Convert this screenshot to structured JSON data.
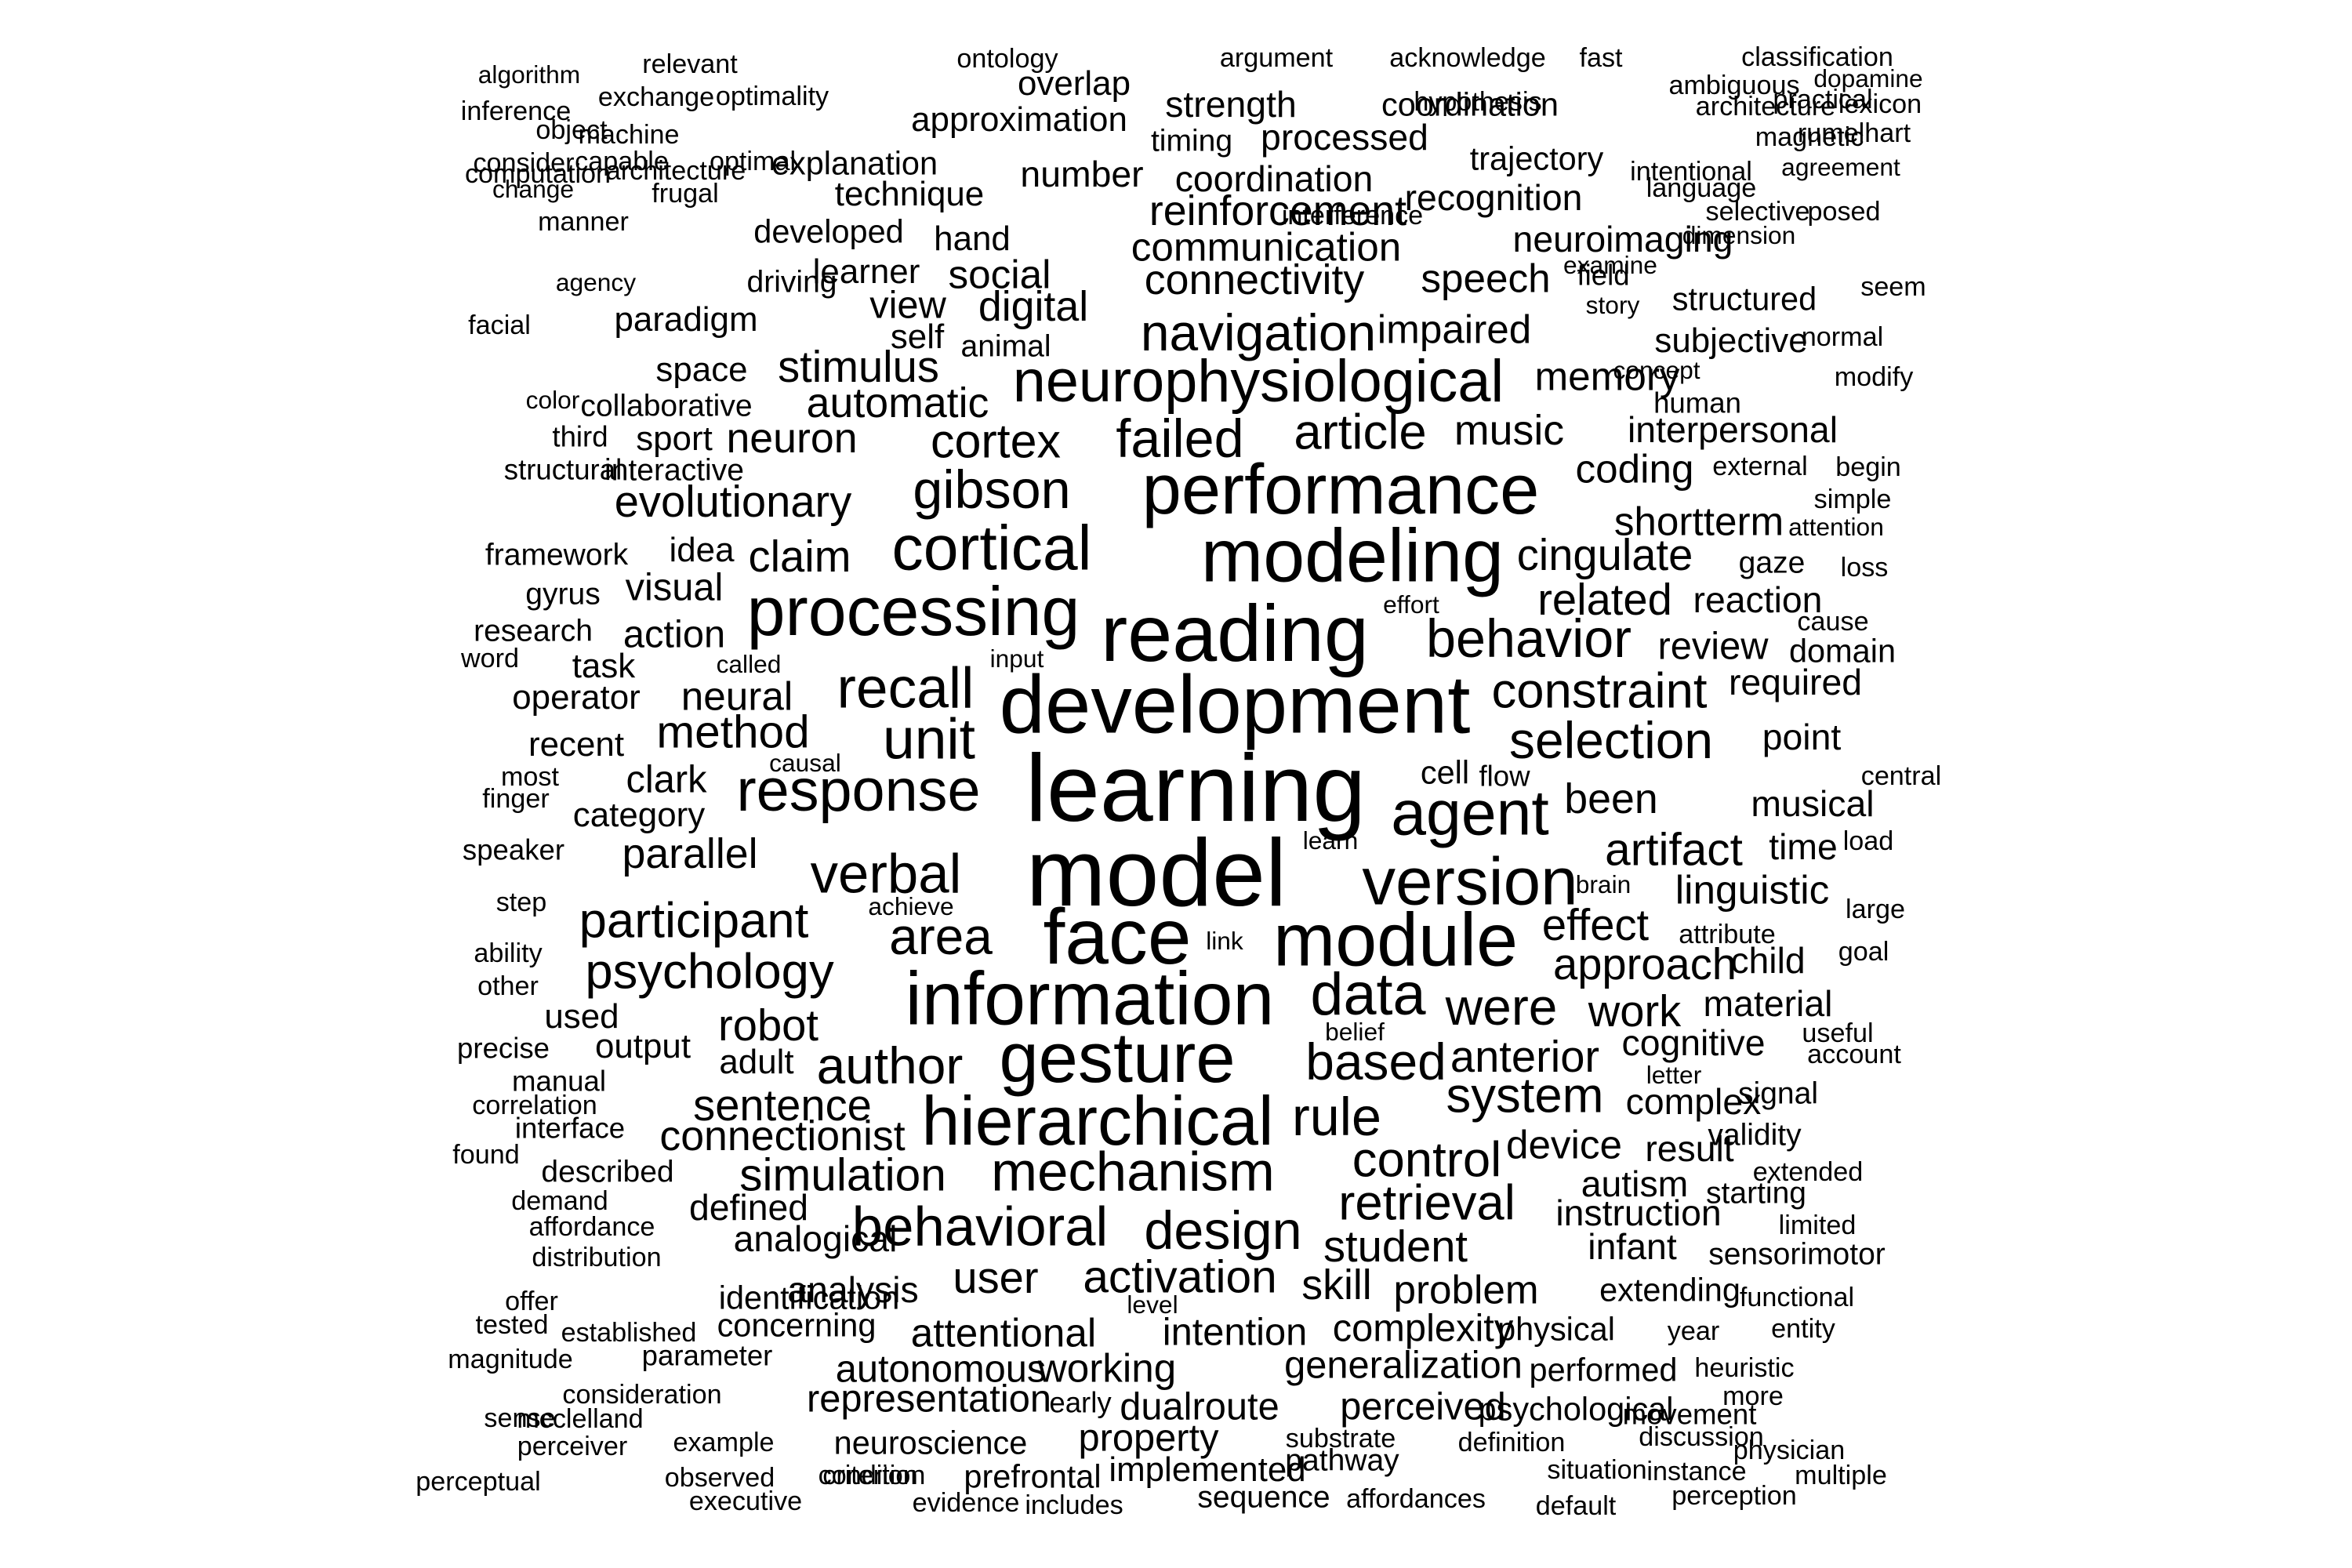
{
  "word_cloud": {
    "text_color": "#000000",
    "background": "#ffffff",
    "words": [
      {
        "text": "learning",
        "weight": 100
      },
      {
        "text": "model",
        "weight": 100
      },
      {
        "text": "development",
        "weight": 86
      },
      {
        "text": "reading",
        "weight": 84
      },
      {
        "text": "face",
        "weight": 82
      },
      {
        "text": "modeling",
        "weight": 78
      },
      {
        "text": "information",
        "weight": 78
      },
      {
        "text": "module",
        "weight": 78
      },
      {
        "text": "performance",
        "weight": 74
      },
      {
        "text": "gesture",
        "weight": 74
      },
      {
        "text": "hierarchical",
        "weight": 72
      },
      {
        "text": "processing",
        "weight": 72
      },
      {
        "text": "version",
        "weight": 70
      },
      {
        "text": "cortical",
        "weight": 66
      },
      {
        "text": "neurophysiological",
        "weight": 62
      },
      {
        "text": "agent",
        "weight": 66
      },
      {
        "text": "response",
        "weight": 62
      },
      {
        "text": "data",
        "weight": 62
      },
      {
        "text": "mechanism",
        "weight": 58
      },
      {
        "text": "behavioral",
        "weight": 58
      },
      {
        "text": "recall",
        "weight": 60
      },
      {
        "text": "unit",
        "weight": 60
      },
      {
        "text": "verbal",
        "weight": 58
      },
      {
        "text": "gibson",
        "weight": 56
      },
      {
        "text": "behavior",
        "weight": 56
      },
      {
        "text": "navigation",
        "weight": 54
      },
      {
        "text": "area",
        "weight": 54
      },
      {
        "text": "based",
        "weight": 54
      },
      {
        "text": "rule",
        "weight": 56
      },
      {
        "text": "author",
        "weight": 54
      },
      {
        "text": "failed",
        "weight": 56
      },
      {
        "text": "design",
        "weight": 56
      },
      {
        "text": "selection",
        "weight": 54
      },
      {
        "text": "participant",
        "weight": 52
      },
      {
        "text": "psychology",
        "weight": 52
      },
      {
        "text": "were",
        "weight": 54
      },
      {
        "text": "retrieval",
        "weight": 52
      },
      {
        "text": "constraint",
        "weight": 52
      },
      {
        "text": "system",
        "weight": 52
      },
      {
        "text": "control",
        "weight": 52
      },
      {
        "text": "article",
        "weight": 52
      },
      {
        "text": "cortex",
        "weight": 50
      },
      {
        "text": "simulation",
        "weight": 48
      },
      {
        "text": "activation",
        "weight": 48
      },
      {
        "text": "method",
        "weight": 48
      },
      {
        "text": "artifact",
        "weight": 48
      },
      {
        "text": "sentence",
        "weight": 46
      },
      {
        "text": "cingulate",
        "weight": 46
      },
      {
        "text": "related",
        "weight": 46
      },
      {
        "text": "anterior",
        "weight": 46
      },
      {
        "text": "evolutionary",
        "weight": 46
      },
      {
        "text": "approach",
        "weight": 46
      },
      {
        "text": "robot",
        "weight": 46
      },
      {
        "text": "stimulus",
        "weight": 46
      },
      {
        "text": "connectionist",
        "weight": 44
      },
      {
        "text": "user",
        "weight": 46
      },
      {
        "text": "student",
        "weight": 46
      },
      {
        "text": "claim",
        "weight": 46
      },
      {
        "text": "neuron",
        "weight": 44
      },
      {
        "text": "parallel",
        "weight": 44
      },
      {
        "text": "effect",
        "weight": 46
      },
      {
        "text": "work",
        "weight": 46
      },
      {
        "text": "music",
        "weight": 44
      },
      {
        "text": "automatic",
        "weight": 44
      },
      {
        "text": "connectivity",
        "weight": 44
      },
      {
        "text": "digital",
        "weight": 44
      },
      {
        "text": "linguistic",
        "weight": 42
      },
      {
        "text": "memory",
        "weight": 42
      },
      {
        "text": "impaired",
        "weight": 42
      },
      {
        "text": "communication",
        "weight": 42
      },
      {
        "text": "neural",
        "weight": 42
      },
      {
        "text": "coding",
        "weight": 42
      },
      {
        "text": "shortterm",
        "weight": 42
      },
      {
        "text": "device",
        "weight": 42
      },
      {
        "text": "speech",
        "weight": 42
      },
      {
        "text": "problem",
        "weight": 42
      },
      {
        "text": "skill",
        "weight": 44
      },
      {
        "text": "attentional",
        "weight": 42
      },
      {
        "text": "reinforcement",
        "weight": 44
      },
      {
        "text": "clark",
        "weight": 40
      },
      {
        "text": "social",
        "weight": 42
      },
      {
        "text": "view",
        "weight": 40
      },
      {
        "text": "visual",
        "weight": 40
      },
      {
        "text": "action",
        "weight": 40
      },
      {
        "text": "review",
        "weight": 40
      },
      {
        "text": "been",
        "weight": 44
      },
      {
        "text": "working",
        "weight": 42
      },
      {
        "text": "intention",
        "weight": 40
      },
      {
        "text": "complexity",
        "weight": 40
      },
      {
        "text": "generalization",
        "weight": 40
      },
      {
        "text": "representation",
        "weight": 40
      },
      {
        "text": "autonomous",
        "weight": 40
      },
      {
        "text": "perceived",
        "weight": 40
      },
      {
        "text": "dualroute",
        "weight": 40
      },
      {
        "text": "property",
        "weight": 40
      },
      {
        "text": "implemented",
        "weight": 36
      },
      {
        "text": "reaction",
        "weight": 38
      },
      {
        "text": "interpersonal",
        "weight": 38
      },
      {
        "text": "analysis",
        "weight": 38
      },
      {
        "text": "cognitive",
        "weight": 38
      },
      {
        "text": "material",
        "weight": 38
      },
      {
        "text": "analogical",
        "weight": 38
      },
      {
        "text": "defined",
        "weight": 38
      },
      {
        "text": "complex",
        "weight": 38
      },
      {
        "text": "result",
        "weight": 38
      },
      {
        "text": "autism",
        "weight": 38
      },
      {
        "text": "instruction",
        "weight": 38
      },
      {
        "text": "infant",
        "weight": 38
      },
      {
        "text": "required",
        "weight": 38
      },
      {
        "text": "musical",
        "weight": 38
      },
      {
        "text": "time",
        "weight": 38
      },
      {
        "text": "point",
        "weight": 38
      },
      {
        "text": "domain",
        "weight": 34
      },
      {
        "text": "child",
        "weight": 38
      },
      {
        "text": "recognition",
        "weight": 38
      },
      {
        "text": "processed",
        "weight": 38
      },
      {
        "text": "coordination",
        "weight": 38
      },
      {
        "text": "number",
        "weight": 38
      },
      {
        "text": "technique",
        "weight": 36
      },
      {
        "text": "strength",
        "weight": 38
      },
      {
        "text": "category",
        "weight": 36
      },
      {
        "text": "output",
        "weight": 36
      },
      {
        "text": "adult",
        "weight": 36
      },
      {
        "text": "used",
        "weight": 36
      },
      {
        "text": "operator",
        "weight": 36
      },
      {
        "text": "recent",
        "weight": 36
      },
      {
        "text": "task",
        "weight": 36
      },
      {
        "text": "neuroimaging",
        "weight": 38
      },
      {
        "text": "space",
        "weight": 36
      },
      {
        "text": "paradigm",
        "weight": 36
      },
      {
        "text": "learner",
        "weight": 36
      },
      {
        "text": "self",
        "weight": 36
      },
      {
        "text": "hand",
        "weight": 36
      },
      {
        "text": "idea",
        "weight": 36
      },
      {
        "text": "sport",
        "weight": 36
      },
      {
        "text": "subjective",
        "weight": 36
      },
      {
        "text": "structured",
        "weight": 34
      },
      {
        "text": "neuroscience",
        "weight": 34
      },
      {
        "text": "concerning",
        "weight": 34
      },
      {
        "text": "identification",
        "weight": 34
      },
      {
        "text": "prefrontal",
        "weight": 34
      },
      {
        "text": "psychological",
        "weight": 34
      },
      {
        "text": "extending",
        "weight": 34
      },
      {
        "text": "physical",
        "weight": 34
      },
      {
        "text": "performed",
        "weight": 34
      },
      {
        "text": "sensorimotor",
        "weight": 32
      },
      {
        "text": "starting",
        "weight": 32
      },
      {
        "text": "validity",
        "weight": 32
      },
      {
        "text": "signal",
        "weight": 32
      },
      {
        "text": "useful",
        "weight": 28
      },
      {
        "text": "sequence",
        "weight": 32
      },
      {
        "text": "pathway",
        "weight": 32
      },
      {
        "text": "approximation",
        "weight": 36
      },
      {
        "text": "explanation",
        "weight": 34
      },
      {
        "text": "developed",
        "weight": 34
      },
      {
        "text": "overlap",
        "weight": 36
      },
      {
        "text": "coordination",
        "weight": 34
      },
      {
        "text": "trajectory",
        "weight": 34
      },
      {
        "text": "timing",
        "weight": 32
      },
      {
        "text": "gaze",
        "weight": 32
      },
      {
        "text": "collaborative",
        "weight": 32
      },
      {
        "text": "interactive",
        "weight": 32
      },
      {
        "text": "framework",
        "weight": 32
      },
      {
        "text": "research",
        "weight": 32
      },
      {
        "text": "gyrus",
        "weight": 32
      },
      {
        "text": "speaker",
        "weight": 30
      },
      {
        "text": "described",
        "weight": 32
      },
      {
        "text": "interface",
        "weight": 30
      },
      {
        "text": "precise",
        "weight": 30
      },
      {
        "text": "manual",
        "weight": 30
      },
      {
        "text": "driving",
        "weight": 32
      },
      {
        "text": "animal",
        "weight": 32
      },
      {
        "text": "structural",
        "weight": 30
      },
      {
        "text": "third",
        "weight": 30
      },
      {
        "text": "early",
        "weight": 30
      },
      {
        "text": "parameter",
        "weight": 30
      },
      {
        "text": "field",
        "weight": 30
      },
      {
        "text": "movement",
        "weight": 30
      },
      {
        "text": "heuristic",
        "weight": 28
      },
      {
        "text": "functional",
        "weight": 28
      },
      {
        "text": "extended",
        "weight": 28
      },
      {
        "text": "human",
        "weight": 30
      },
      {
        "text": "external",
        "weight": 28
      },
      {
        "text": "condition",
        "weight": 28
      },
      {
        "text": "affordances",
        "weight": 28
      },
      {
        "text": "example",
        "weight": 28
      },
      {
        "text": "perceptual",
        "weight": 28
      },
      {
        "text": "instance",
        "weight": 28
      },
      {
        "text": "perception",
        "weight": 28
      },
      {
        "text": "physician",
        "weight": 28
      },
      {
        "text": "discussion",
        "weight": 28
      },
      {
        "text": "substrate",
        "weight": 28
      },
      {
        "text": "definition",
        "weight": 28
      },
      {
        "text": "correlation",
        "weight": 28
      },
      {
        "text": "established",
        "weight": 28
      },
      {
        "text": "tested",
        "weight": 28
      },
      {
        "text": "magnitude",
        "weight": 28
      },
      {
        "text": "consideration",
        "weight": 28
      },
      {
        "text": "mcclelland",
        "weight": 28
      },
      {
        "text": "perceiver",
        "weight": 28
      },
      {
        "text": "observed",
        "weight": 28
      },
      {
        "text": "executive",
        "weight": 28
      },
      {
        "text": "criterion",
        "weight": 28
      },
      {
        "text": "evidence",
        "weight": 28
      },
      {
        "text": "includes",
        "weight": 28
      },
      {
        "text": "default",
        "weight": 28
      },
      {
        "text": "situation",
        "weight": 28
      },
      {
        "text": "multiple",
        "weight": 28
      },
      {
        "text": "entity",
        "weight": 28
      },
      {
        "text": "year",
        "weight": 28
      },
      {
        "text": "more",
        "weight": 28
      },
      {
        "text": "sense",
        "weight": 28
      },
      {
        "text": "found",
        "weight": 28
      },
      {
        "text": "demand",
        "weight": 28
      },
      {
        "text": "affordance",
        "weight": 28
      },
      {
        "text": "distribution",
        "weight": 28
      },
      {
        "text": "offer",
        "weight": 28
      },
      {
        "text": "level",
        "weight": 26
      },
      {
        "text": "limited",
        "weight": 28
      },
      {
        "text": "account",
        "weight": 28
      },
      {
        "text": "letter",
        "weight": 26
      },
      {
        "text": "belief",
        "weight": 26
      },
      {
        "text": "ability",
        "weight": 28
      },
      {
        "text": "other",
        "weight": 28
      },
      {
        "text": "step",
        "weight": 28
      },
      {
        "text": "achieve",
        "weight": 26
      },
      {
        "text": "link",
        "weight": 26
      },
      {
        "text": "attribute",
        "weight": 28
      },
      {
        "text": "goal",
        "weight": 28
      },
      {
        "text": "large",
        "weight": 28
      },
      {
        "text": "brain",
        "weight": 26
      },
      {
        "text": "load",
        "weight": 28
      },
      {
        "text": "central",
        "weight": 28
      },
      {
        "text": "learn",
        "weight": 26
      },
      {
        "text": "finger",
        "weight": 28
      },
      {
        "text": "most",
        "weight": 28
      },
      {
        "text": "causal",
        "weight": 26
      },
      {
        "text": "cell",
        "weight": 34
      },
      {
        "text": "flow",
        "weight": 30
      },
      {
        "text": "word",
        "weight": 28
      },
      {
        "text": "called",
        "weight": 26
      },
      {
        "text": "input",
        "weight": 26
      },
      {
        "text": "effort",
        "weight": 26
      },
      {
        "text": "cause",
        "weight": 28
      },
      {
        "text": "loss",
        "weight": 28
      },
      {
        "text": "attention",
        "weight": 26
      },
      {
        "text": "simple",
        "weight": 28
      },
      {
        "text": "begin",
        "weight": 28
      },
      {
        "text": "modify",
        "weight": 28
      },
      {
        "text": "concept",
        "weight": 26
      },
      {
        "text": "normal",
        "weight": 28
      },
      {
        "text": "seem",
        "weight": 28
      },
      {
        "text": "story",
        "weight": 26
      },
      {
        "text": "examine",
        "weight": 26
      },
      {
        "text": "dimension",
        "weight": 26
      },
      {
        "text": "selective",
        "weight": 28
      },
      {
        "text": "posed",
        "weight": 28
      },
      {
        "text": "agreement",
        "weight": 26
      },
      {
        "text": "language",
        "weight": 28
      },
      {
        "text": "magnetic",
        "weight": 28
      },
      {
        "text": "rumelhart",
        "weight": 28
      },
      {
        "text": "intentional",
        "weight": 28
      },
      {
        "text": "practical",
        "weight": 28
      },
      {
        "text": "architecture",
        "weight": 28
      },
      {
        "text": "lexicon",
        "weight": 28
      },
      {
        "text": "ambiguous",
        "weight": 28
      },
      {
        "text": "dopamine",
        "weight": 26
      },
      {
        "text": "classification",
        "weight": 28
      },
      {
        "text": "fast",
        "weight": 28
      },
      {
        "text": "acknowledge",
        "weight": 28
      },
      {
        "text": "hypothesis",
        "weight": 28
      },
      {
        "text": "argument",
        "weight": 28
      },
      {
        "text": "interference",
        "weight": 28
      },
      {
        "text": "ontology",
        "weight": 28
      },
      {
        "text": "relevant",
        "weight": 28
      },
      {
        "text": "optimality",
        "weight": 28
      },
      {
        "text": "exchange",
        "weight": 28
      },
      {
        "text": "algorithm",
        "weight": 26
      },
      {
        "text": "inference",
        "weight": 28
      },
      {
        "text": "object",
        "weight": 28
      },
      {
        "text": "machine",
        "weight": 28
      },
      {
        "text": "consider",
        "weight": 28
      },
      {
        "text": "optimal",
        "weight": 28
      },
      {
        "text": "capable",
        "weight": 28
      },
      {
        "text": "computation",
        "weight": 28
      },
      {
        "text": "architecture",
        "weight": 28
      },
      {
        "text": "change",
        "weight": 26
      },
      {
        "text": "frugal",
        "weight": 28
      },
      {
        "text": "manner",
        "weight": 28
      },
      {
        "text": "agency",
        "weight": 26
      },
      {
        "text": "facial",
        "weight": 28
      },
      {
        "text": "color",
        "weight": 26
      }
    ]
  }
}
